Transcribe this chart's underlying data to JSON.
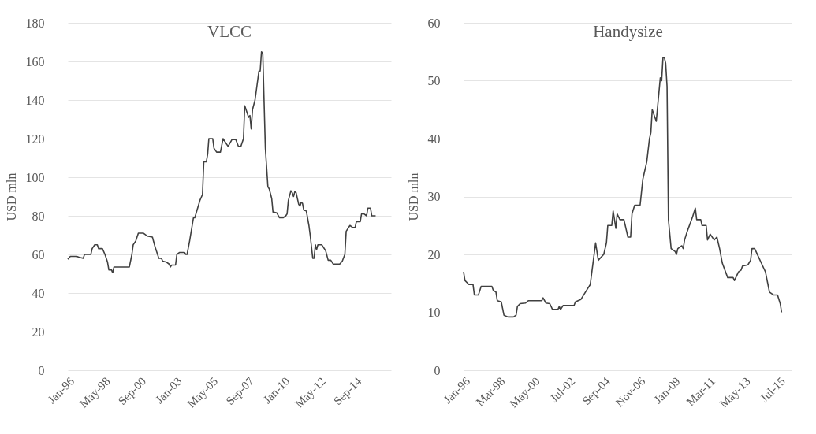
{
  "chart_data": [
    {
      "type": "line",
      "title": "VLCC",
      "ylabel": "USD mln",
      "grid": "y",
      "ylim": [
        0,
        180
      ],
      "yticks": [
        0,
        20,
        40,
        60,
        80,
        100,
        120,
        140,
        160,
        180
      ],
      "xlim": [
        "1996-01",
        "2017-01"
      ],
      "xticks": [
        {
          "value": "1996-01",
          "label": "Jan-96"
        },
        {
          "value": "1998-05",
          "label": "May-98"
        },
        {
          "value": "2000-09",
          "label": "Sep-00"
        },
        {
          "value": "2003-01",
          "label": "Jan-03"
        },
        {
          "value": "2005-05",
          "label": "May-05"
        },
        {
          "value": "2007-09",
          "label": "Sep-07"
        },
        {
          "value": "2010-01",
          "label": "Jan-10"
        },
        {
          "value": "2012-05",
          "label": "May-12"
        },
        {
          "value": "2014-09",
          "label": "Sep-14"
        }
      ],
      "series": [
        {
          "color": "#404040",
          "x": [
            "1996-01",
            "1996-03",
            "1996-08",
            "1996-10",
            "1997-01",
            "1997-02",
            "1997-07",
            "1997-08",
            "1997-10",
            "1997-12",
            "1998-01",
            "1998-04",
            "1998-06",
            "1998-08",
            "1998-09",
            "1998-11",
            "1998-12",
            "1999-01",
            "2000-01",
            "2000-03",
            "2000-04",
            "2000-06",
            "2000-08",
            "2000-12",
            "2001-03",
            "2001-07",
            "2001-09",
            "2001-12",
            "2002-02",
            "2002-03",
            "2002-06",
            "2002-08",
            "2002-09",
            "2002-10",
            "2003-01",
            "2003-02",
            "2003-04",
            "2003-08",
            "2003-09",
            "2003-10",
            "2003-12",
            "2004-03",
            "2004-04",
            "2004-08",
            "2004-10",
            "2004-11",
            "2005-01",
            "2005-02",
            "2005-03",
            "2005-06",
            "2005-07",
            "2005-09",
            "2005-12",
            "2006-02",
            "2006-05",
            "2006-06",
            "2006-09",
            "2006-12",
            "2007-02",
            "2007-04",
            "2007-06",
            "2007-07",
            "2007-10",
            "2007-11",
            "2007-12",
            "2008-01",
            "2008-03",
            "2008-04",
            "2008-06",
            "2008-07",
            "2008-08",
            "2008-09",
            "2008-11",
            "2009-01",
            "2009-02",
            "2009-04",
            "2009-05",
            "2009-08",
            "2009-10",
            "2010-01",
            "2010-03",
            "2010-04",
            "2010-05",
            "2010-07",
            "2010-08",
            "2010-09",
            "2010-10",
            "2010-11",
            "2011-01",
            "2011-02",
            "2011-03",
            "2011-04",
            "2011-05",
            "2011-07",
            "2011-09",
            "2011-10",
            "2011-12",
            "2012-01",
            "2012-02",
            "2012-03",
            "2012-04",
            "2012-07",
            "2012-10",
            "2012-12",
            "2013-02",
            "2013-04",
            "2013-09",
            "2013-11",
            "2014-01",
            "2014-02",
            "2014-05",
            "2014-07",
            "2014-09",
            "2014-10",
            "2015-01",
            "2015-02",
            "2015-04",
            "2015-06",
            "2015-07",
            "2015-09",
            "2015-10",
            "2016-01"
          ],
          "values": [
            57.5,
            59,
            59,
            58.5,
            58,
            60,
            60,
            63,
            65,
            65,
            63,
            63,
            60,
            56,
            52,
            52,
            50.5,
            53.5,
            53.5,
            60,
            65,
            67,
            71,
            71,
            69.5,
            69,
            64,
            58,
            58,
            56.5,
            56,
            55,
            53.5,
            54.5,
            54.5,
            60,
            61,
            61,
            60,
            60,
            67,
            79,
            79,
            88,
            91,
            108,
            108,
            112,
            120,
            120,
            115,
            113,
            113,
            120,
            117,
            116,
            119.5,
            119.5,
            116,
            116,
            120,
            137,
            131,
            132,
            125,
            135,
            140,
            145,
            155,
            155,
            165,
            164,
            115,
            95,
            94,
            89,
            82,
            81.5,
            79,
            79,
            80,
            81,
            88,
            93,
            92,
            90,
            92.5,
            92,
            86,
            85,
            87,
            86.5,
            83,
            82.5,
            75,
            70,
            58,
            58,
            65,
            62.5,
            65,
            65,
            62,
            57,
            57,
            55,
            55,
            56.5,
            60,
            72,
            75,
            74,
            74,
            77,
            77,
            81,
            81,
            80,
            84,
            84,
            80,
            80
          ]
        }
      ]
    },
    {
      "type": "line",
      "title": "Handysize",
      "ylabel": "USD mln",
      "grid": "y",
      "ylim": [
        0,
        60
      ],
      "yticks": [
        0,
        10,
        20,
        30,
        40,
        50,
        60
      ],
      "xlim": [
        "1996-01",
        "2016-05"
      ],
      "xticks": [
        {
          "value": "1996-01",
          "label": "Jan-96"
        },
        {
          "value": "1998-03",
          "label": "Mar-98"
        },
        {
          "value": "2000-05",
          "label": "May-00"
        },
        {
          "value": "2002-07",
          "label": "Jul-02"
        },
        {
          "value": "2004-09",
          "label": "Sep-04"
        },
        {
          "value": "2006-11",
          "label": "Nov-06"
        },
        {
          "value": "2009-01",
          "label": "Jan-09"
        },
        {
          "value": "2011-03",
          "label": "Mar-11"
        },
        {
          "value": "2013-05",
          "label": "May-13"
        },
        {
          "value": "2015-07",
          "label": "Jul-15"
        }
      ],
      "series": [
        {
          "color": "#404040",
          "x": [
            "1996-01",
            "1996-02",
            "1996-05",
            "1996-08",
            "1996-09",
            "1996-12",
            "1997-02",
            "1997-10",
            "1997-11",
            "1998-01",
            "1998-02",
            "1998-05",
            "1998-07",
            "1998-10",
            "1999-02",
            "1999-04",
            "1999-05",
            "1999-07",
            "1999-11",
            "2000-01",
            "2000-11",
            "2000-12",
            "2001-02",
            "2001-05",
            "2001-07",
            "2001-11",
            "2001-12",
            "2002-01",
            "2002-03",
            "2002-11",
            "2002-12",
            "2003-04",
            "2003-08",
            "2003-11",
            "2004-03",
            "2004-05",
            "2004-09",
            "2004-11",
            "2004-12",
            "2005-03",
            "2005-04",
            "2005-06",
            "2005-07",
            "2005-09",
            "2005-12",
            "2006-03",
            "2006-05",
            "2006-06",
            "2006-08",
            "2006-12",
            "2007-02",
            "2007-05",
            "2007-07",
            "2007-08",
            "2007-09",
            "2007-12",
            "2008-03",
            "2008-04",
            "2008-05",
            "2008-06",
            "2008-07",
            "2008-08",
            "2008-09",
            "2008-11",
            "2009-02",
            "2009-03",
            "2009-04",
            "2009-07",
            "2009-08",
            "2009-09",
            "2009-11",
            "2010-03",
            "2010-05",
            "2010-06",
            "2010-09",
            "2010-10",
            "2011-01",
            "2011-02",
            "2011-04",
            "2011-07",
            "2011-09",
            "2011-11",
            "2012-01",
            "2012-05",
            "2012-09",
            "2012-10",
            "2013-01",
            "2013-03",
            "2013-04",
            "2013-08",
            "2013-10",
            "2013-11",
            "2014-01",
            "2014-02",
            "2014-04",
            "2014-06",
            "2014-09",
            "2014-12",
            "2015-03",
            "2015-06",
            "2015-08",
            "2015-09"
          ],
          "values": [
            17,
            15.5,
            14.8,
            14.8,
            13,
            13,
            14.5,
            14.5,
            13.8,
            13.5,
            12,
            11.8,
            9.5,
            9.2,
            9.2,
            9.5,
            11,
            11.5,
            11.6,
            12,
            12,
            12.5,
            11.6,
            11.5,
            10.5,
            10.5,
            11,
            10.5,
            11.2,
            11.2,
            11.8,
            12.2,
            13.7,
            14.8,
            22,
            19,
            20,
            22,
            25,
            25,
            27.5,
            24.5,
            27,
            26,
            26,
            23,
            23,
            27,
            28.5,
            28.5,
            33,
            36,
            40,
            41,
            45,
            43,
            50.5,
            50,
            54,
            54,
            53,
            49,
            26,
            21,
            20.5,
            20,
            21,
            21.5,
            21,
            22.5,
            24,
            26.5,
            28,
            26,
            26,
            25,
            25,
            22.5,
            23.5,
            22.5,
            23,
            21,
            18.5,
            16,
            16,
            15.5,
            17,
            17.3,
            18,
            18.2,
            19,
            21,
            21,
            20.5,
            19.5,
            18.5,
            17,
            13.5,
            13,
            13,
            11.5,
            10
          ]
        }
      ]
    }
  ]
}
